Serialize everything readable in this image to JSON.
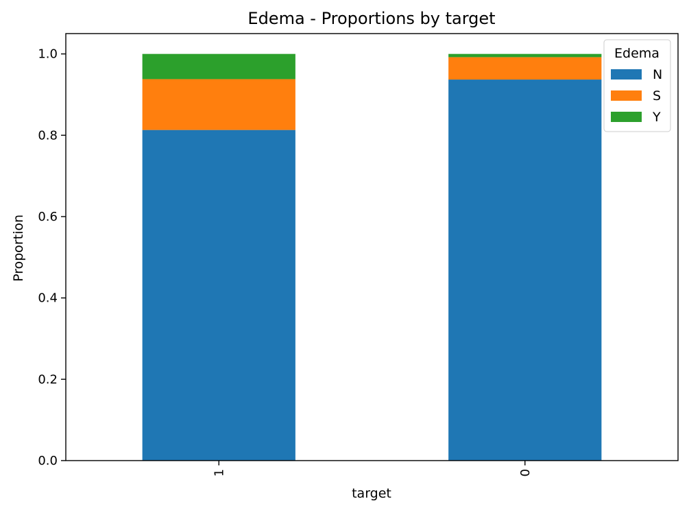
{
  "chart_data": {
    "type": "bar",
    "stacked": true,
    "title": "Edema - Proportions by target",
    "xlabel": "target",
    "ylabel": "Proportion",
    "categories": [
      "1",
      "0"
    ],
    "ylim": [
      0,
      1.05
    ],
    "yticks": [
      0.0,
      0.2,
      0.4,
      0.6,
      0.8,
      1.0
    ],
    "ytick_labels": [
      "0.0",
      "0.2",
      "0.4",
      "0.6",
      "0.8",
      "1.0"
    ],
    "series": [
      {
        "name": "N",
        "color": "#1f77b4",
        "values": [
          0.813,
          0.937
        ]
      },
      {
        "name": "S",
        "color": "#ff7f0e",
        "values": [
          0.125,
          0.055
        ]
      },
      {
        "name": "Y",
        "color": "#2ca02c",
        "values": [
          0.062,
          0.008
        ]
      }
    ],
    "legend": {
      "title": "Edema",
      "position": "top-right"
    },
    "grid": false
  }
}
